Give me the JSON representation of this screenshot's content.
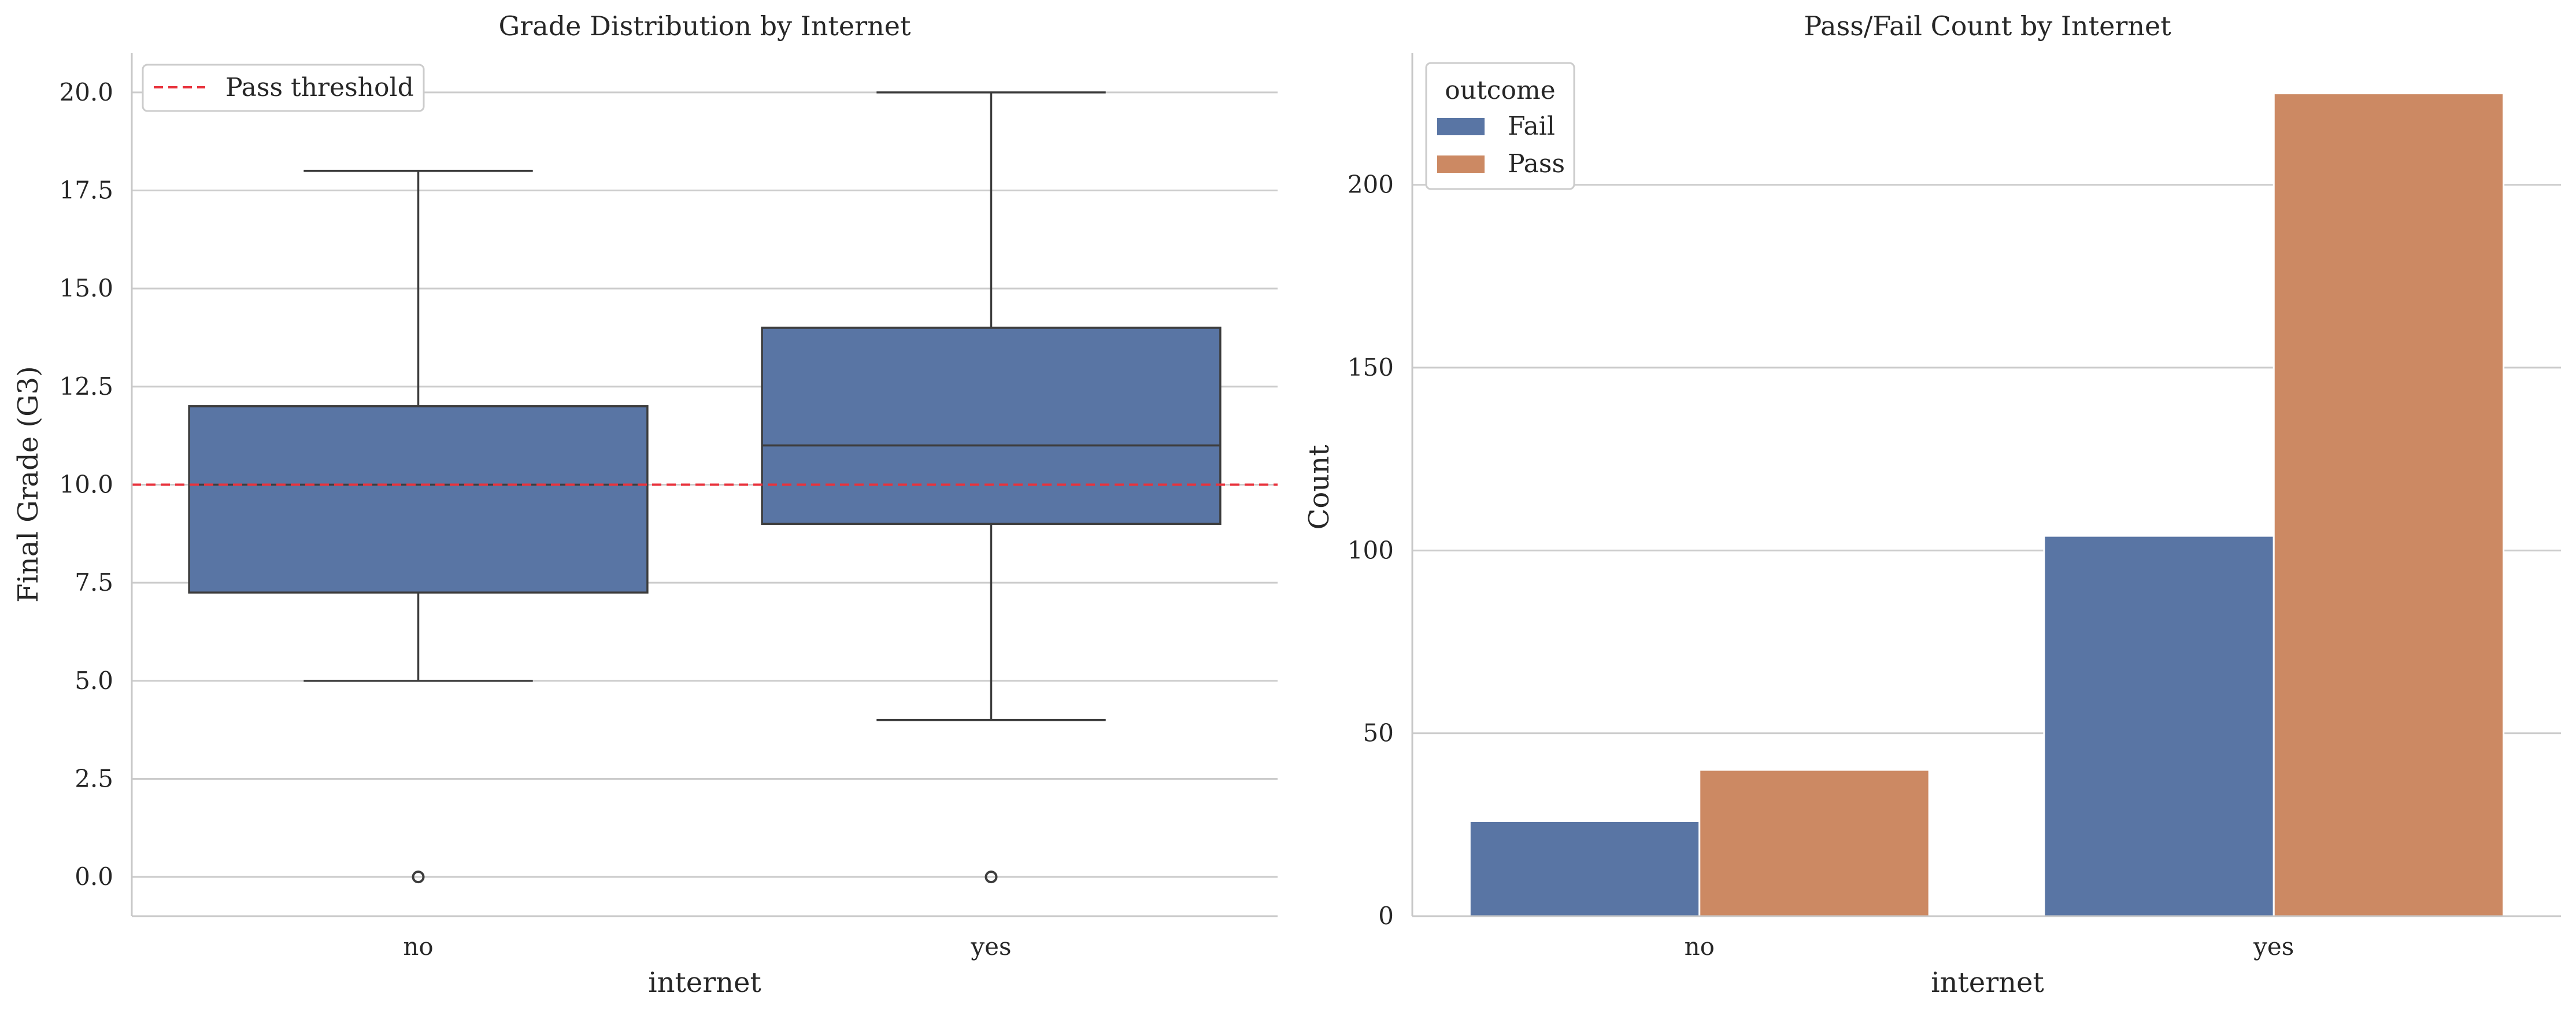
{
  "chart_data": [
    {
      "type": "box",
      "title": "Grade Distribution by Internet",
      "xlabel": "internet",
      "ylabel": "Final Grade (G3)",
      "categories": [
        "no",
        "yes"
      ],
      "boxes": [
        {
          "category": "no",
          "whisker_low": 5.0,
          "q1": 7.25,
          "median": 10.0,
          "q3": 12.0,
          "whisker_high": 18.0,
          "outliers": [
            0.0
          ]
        },
        {
          "category": "yes",
          "whisker_low": 4.0,
          "q1": 9.0,
          "median": 11.0,
          "q3": 14.0,
          "whisker_high": 20.0,
          "outliers": [
            0.0
          ]
        }
      ],
      "reference_line": {
        "label": "Pass threshold",
        "y": 10.0,
        "color": "#e8323c",
        "style": "dashed"
      },
      "ylim": [
        -1,
        21
      ],
      "yticks": [
        0.0,
        2.5,
        5.0,
        7.5,
        10.0,
        12.5,
        15.0,
        17.5,
        20.0
      ],
      "ytick_labels": [
        "0.0",
        "2.5",
        "5.0",
        "7.5",
        "10.0",
        "12.5",
        "15.0",
        "17.5",
        "20.0"
      ],
      "box_color": "#5975a4",
      "grid": "horizontal",
      "legend_position": "upper-left"
    },
    {
      "type": "bar",
      "title": "Pass/Fail Count by Internet",
      "xlabel": "internet",
      "ylabel": "Count",
      "categories": [
        "no",
        "yes"
      ],
      "series": [
        {
          "name": "Fail",
          "values": [
            26,
            104
          ],
          "color": "#5975a4"
        },
        {
          "name": "Pass",
          "values": [
            40,
            225
          ],
          "color": "#cc8963"
        }
      ],
      "legend_title": "outcome",
      "ylim": [
        0,
        236
      ],
      "yticks": [
        0,
        50,
        100,
        150,
        200
      ],
      "ytick_labels": [
        "0",
        "50",
        "100",
        "150",
        "200"
      ],
      "grid": "horizontal",
      "legend_position": "upper-left"
    }
  ]
}
